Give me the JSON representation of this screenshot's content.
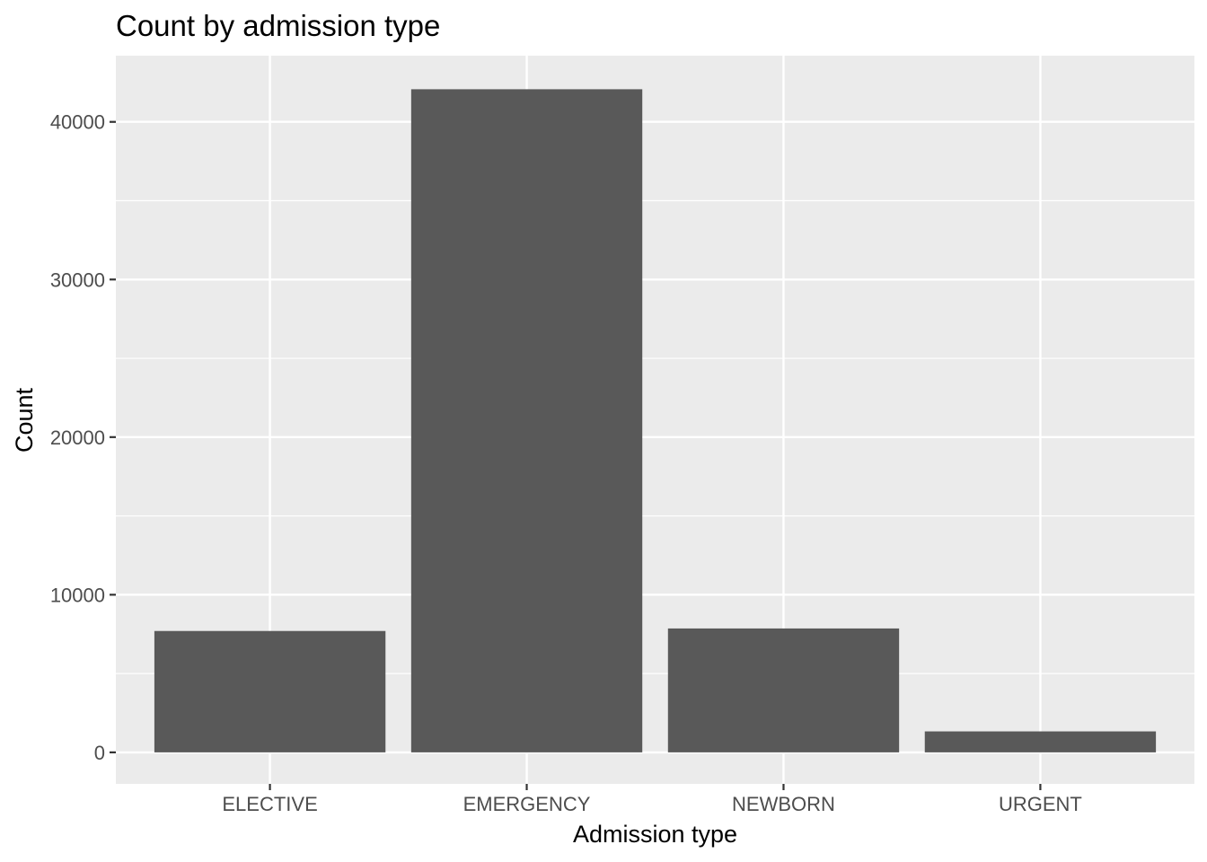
{
  "chart_data": {
    "type": "bar",
    "title": "Count by admission type",
    "xlabel": "Admission type",
    "ylabel": "Count",
    "categories": [
      "ELECTIVE",
      "EMERGENCY",
      "NEWBORN",
      "URGENT"
    ],
    "values": [
      7700,
      42070,
      7860,
      1330
    ],
    "ylim": [
      -2000,
      44200
    ],
    "yticks": [
      0,
      10000,
      20000,
      30000,
      40000
    ],
    "ytick_labels": [
      "0",
      "10000",
      "20000",
      "30000",
      "40000"
    ],
    "grid": true,
    "legend": "none",
    "colors": {
      "bar": "#595959",
      "panel": "#ebebeb",
      "grid": "#ffffff",
      "tick_text": "#4d4d4d"
    }
  }
}
